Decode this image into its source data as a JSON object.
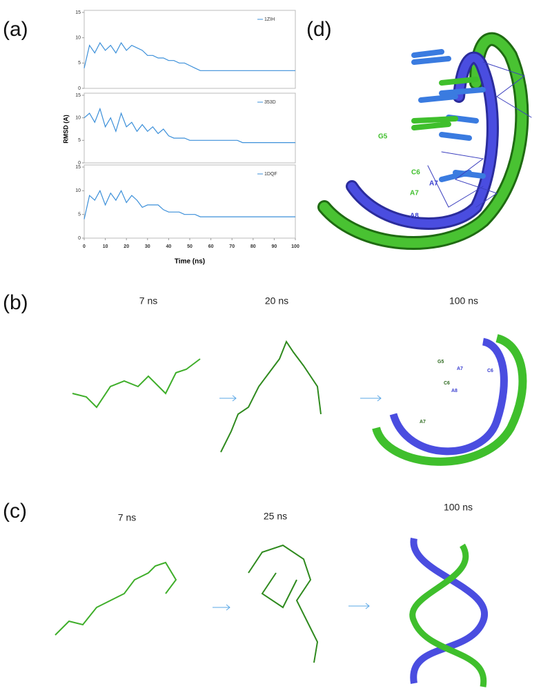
{
  "panel_labels": [
    "(a)",
    "(b)",
    "(c)",
    "(d)"
  ],
  "chart_data": [
    {
      "type": "line",
      "xlim": [
        0,
        100
      ],
      "ylim": [
        0,
        15
      ],
      "yticks": [
        0,
        5,
        10,
        15
      ],
      "x": [
        0,
        2.5,
        5,
        7.5,
        10,
        12.5,
        15,
        17.5,
        20,
        22.5,
        25,
        27.5,
        30,
        32.5,
        35,
        37.5,
        40,
        42.5,
        45,
        47.5,
        50,
        52.5,
        55,
        57.5,
        60,
        62.5,
        65,
        67.5,
        70,
        72.5,
        75,
        77.5,
        80,
        82.5,
        85,
        87.5,
        90,
        92.5,
        95,
        97.5,
        100
      ],
      "series": [
        {
          "name": "1ZIH",
          "color": "#3b8fd9",
          "values": [
            4,
            8.5,
            7,
            9,
            7.5,
            8.5,
            7,
            9,
            7.5,
            8.5,
            8,
            7.5,
            6.5,
            6.5,
            6,
            6,
            5.5,
            5.5,
            5,
            5,
            4.5,
            4,
            3.5,
            3.5,
            3.5,
            3.5,
            3.5,
            3.5,
            3.5,
            3.5,
            3.5,
            3.5,
            3.5,
            3.5,
            3.5,
            3.5,
            3.5,
            3.5,
            3.5,
            3.5,
            3.5
          ]
        }
      ]
    },
    {
      "type": "line",
      "ylabel": "RMSD (A)",
      "xlim": [
        0,
        100
      ],
      "ylim": [
        0,
        15
      ],
      "yticks": [
        0,
        5,
        10,
        15
      ],
      "x": [
        0,
        2.5,
        5,
        7.5,
        10,
        12.5,
        15,
        17.5,
        20,
        22.5,
        25,
        27.5,
        30,
        32.5,
        35,
        37.5,
        40,
        42.5,
        45,
        47.5,
        50,
        52.5,
        55,
        57.5,
        60,
        62.5,
        65,
        67.5,
        70,
        72.5,
        75,
        77.5,
        80,
        82.5,
        85,
        87.5,
        90,
        92.5,
        95,
        97.5,
        100
      ],
      "series": [
        {
          "name": "353D",
          "color": "#3b8fd9",
          "values": [
            10,
            11,
            9,
            12,
            8,
            10,
            7,
            11,
            8,
            9,
            7,
            8.5,
            7,
            8,
            6.5,
            7.5,
            6,
            5.5,
            5.5,
            5.5,
            5,
            5,
            5,
            5,
            5,
            5,
            5,
            5,
            5,
            5,
            4.5,
            4.5,
            4.5,
            4.5,
            4.5,
            4.5,
            4.5,
            4.5,
            4.5,
            4.5,
            4.5
          ]
        }
      ]
    },
    {
      "type": "line",
      "xlabel": "Time (ns)",
      "xlim": [
        0,
        100
      ],
      "ylim": [
        0,
        15
      ],
      "yticks": [
        0,
        5,
        10,
        15
      ],
      "xticks": [
        0,
        10,
        20,
        30,
        40,
        50,
        60,
        70,
        80,
        90,
        100
      ],
      "x": [
        0,
        2.5,
        5,
        7.5,
        10,
        12.5,
        15,
        17.5,
        20,
        22.5,
        25,
        27.5,
        30,
        32.5,
        35,
        37.5,
        40,
        42.5,
        45,
        47.5,
        50,
        52.5,
        55,
        57.5,
        60,
        62.5,
        65,
        67.5,
        70,
        72.5,
        75,
        77.5,
        80,
        82.5,
        85,
        87.5,
        90,
        92.5,
        95,
        97.5,
        100
      ],
      "series": [
        {
          "name": "1DQF",
          "color": "#3b8fd9",
          "values": [
            4,
            9,
            8,
            10,
            7,
            9.5,
            8,
            10,
            7.5,
            9,
            8,
            6.5,
            7,
            7,
            7,
            6,
            5.5,
            5.5,
            5.5,
            5,
            5,
            5,
            4.5,
            4.5,
            4.5,
            4.5,
            4.5,
            4.5,
            4.5,
            4.5,
            4.5,
            4.5,
            4.5,
            4.5,
            4.5,
            4.5,
            4.5,
            4.5,
            4.5,
            4.5,
            4.5
          ]
        }
      ]
    }
  ],
  "panel_b": {
    "times": [
      "7 ns",
      "20 ns",
      "100 ns"
    ],
    "labels": [
      "G5",
      "A7",
      "C6",
      "C6",
      "A8",
      "A7"
    ]
  },
  "panel_c": {
    "times": [
      "7 ns",
      "25 ns",
      "100 ns"
    ]
  },
  "panel_d": {
    "labels": [
      "G5",
      "C6",
      "A7",
      "A7",
      "A8"
    ]
  }
}
